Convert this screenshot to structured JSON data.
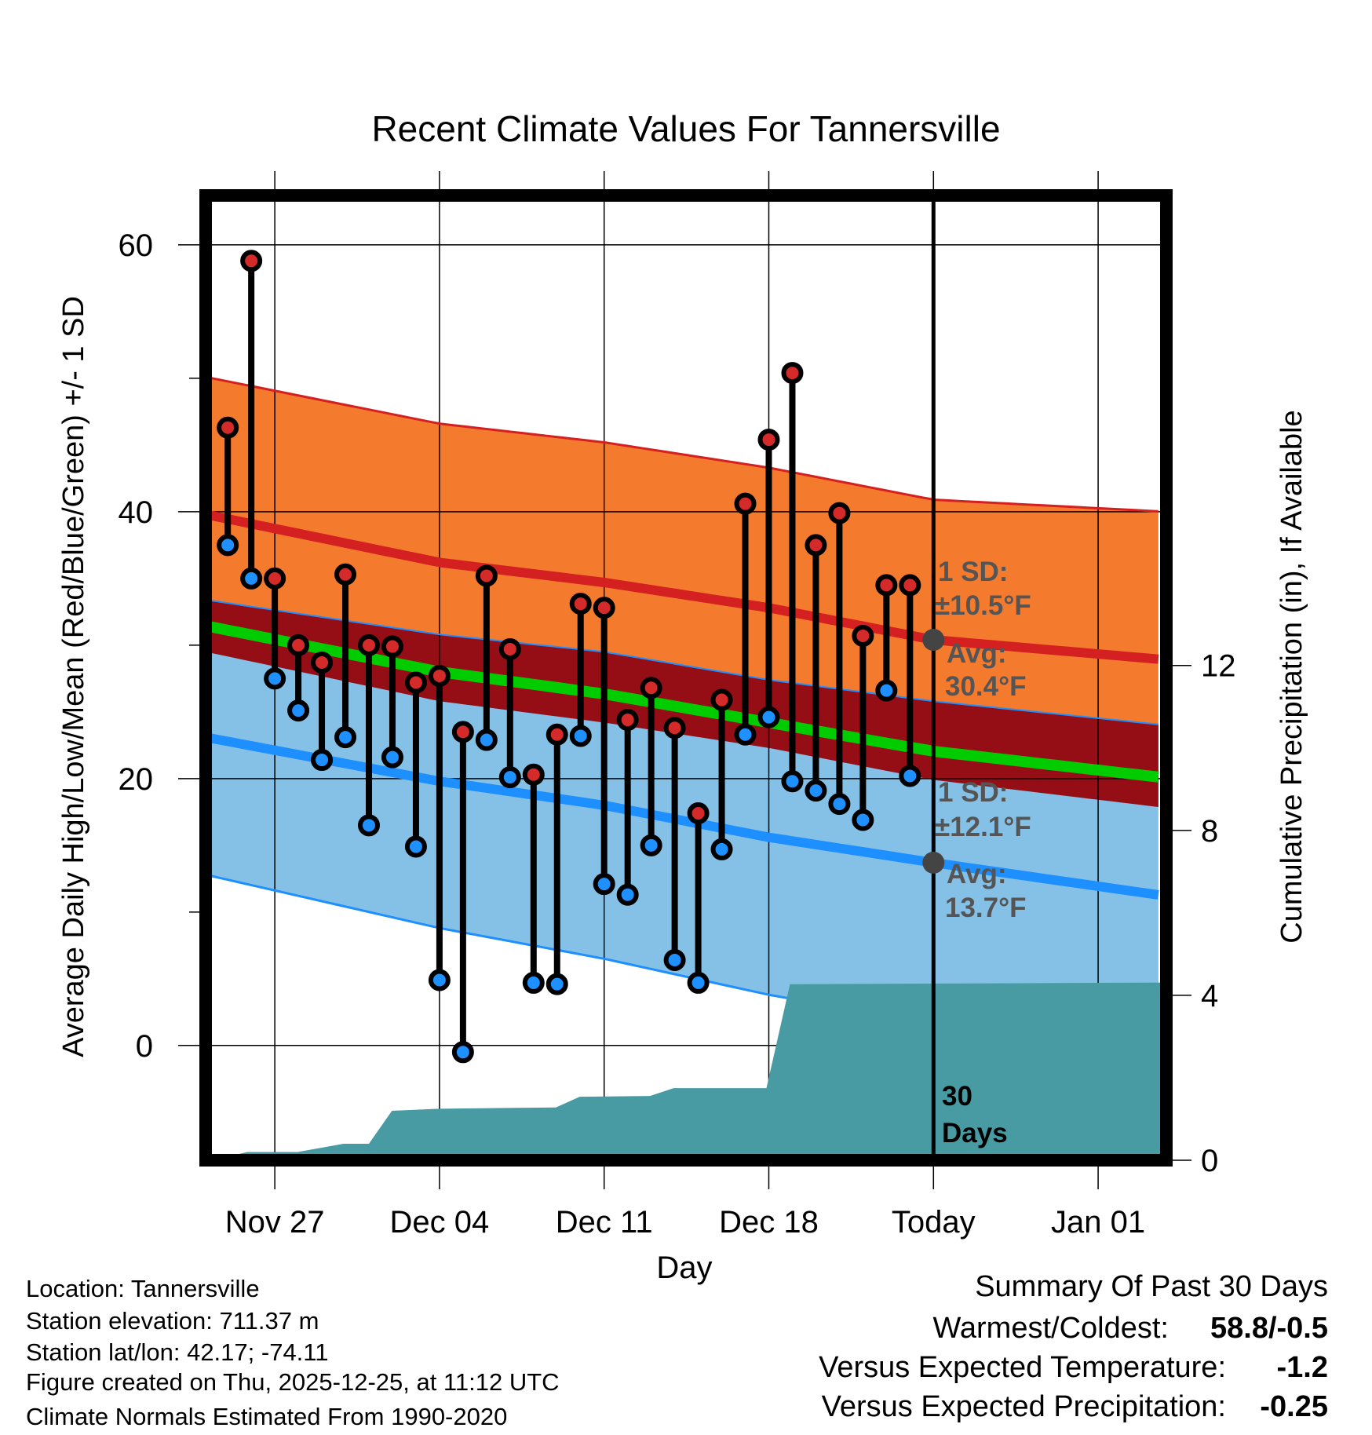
{
  "chart_data": {
    "type": "line",
    "title": "Recent Climate Values For Tannersville",
    "xlabel": "Day",
    "ylabel": "Average Daily High/Low/Mean (Red/Blue/Green) +/- 1 SD",
    "ylabel_right": "Cumulative Precipitation (in), If Available",
    "ylim": [
      -8.6,
      63.7
    ],
    "ylim_right": [
      0,
      23.4
    ],
    "x_reference": "Nov 27 = day 0",
    "xlim_days": [
      -2.94,
      37.9
    ],
    "x_ticks": [
      {
        "day": 0,
        "label": "Nov 27"
      },
      {
        "day": 7,
        "label": "Dec 04"
      },
      {
        "day": 14,
        "label": "Dec 11"
      },
      {
        "day": 21,
        "label": "Dec 18"
      },
      {
        "day": 28,
        "label": "Today"
      },
      {
        "day": 35,
        "label": "Jan 01"
      }
    ],
    "y_ticks": [
      0,
      20,
      40,
      60
    ],
    "y_ticks_right": [
      0,
      4,
      8,
      12
    ],
    "grid": true,
    "daily": {
      "days": [
        -2,
        -1,
        0,
        1,
        2,
        3,
        4,
        5,
        6,
        7,
        8,
        9,
        10,
        11,
        12,
        13,
        14,
        15,
        16,
        17,
        18,
        19,
        20,
        21,
        22,
        23,
        24,
        25,
        26,
        27
      ],
      "highs": [
        46.3,
        58.8,
        35.0,
        30.0,
        28.7,
        35.3,
        30.0,
        29.9,
        27.2,
        27.7,
        23.5,
        35.2,
        29.7,
        20.3,
        23.3,
        33.1,
        32.8,
        24.4,
        26.8,
        23.8,
        17.4,
        25.9,
        40.6,
        45.4,
        50.4,
        37.5,
        39.9,
        30.7,
        34.5,
        34.5
      ],
      "lows": [
        37.5,
        35.0,
        27.5,
        25.1,
        21.4,
        23.1,
        16.5,
        21.6,
        14.9,
        4.9,
        -0.5,
        22.9,
        20.1,
        4.7,
        4.6,
        23.2,
        12.1,
        11.3,
        15.0,
        6.4,
        4.7,
        14.7,
        23.3,
        24.6,
        19.8,
        19.1,
        18.1,
        16.9,
        26.6,
        20.2
      ]
    },
    "normals": {
      "days": [
        -2.94,
        7,
        14,
        21,
        28,
        37.9
      ],
      "high_avg": [
        39.8,
        36.2,
        34.7,
        32.8,
        30.4,
        28.9
      ],
      "high_sd": [
        10.3,
        10.4,
        10.5,
        10.5,
        10.5,
        11.1
      ],
      "low_avg": [
        23.1,
        19.8,
        18.0,
        15.6,
        13.7,
        11.2
      ],
      "low_sd": [
        10.3,
        11.0,
        11.5,
        11.8,
        12.1,
        12.8
      ]
    },
    "precip": {
      "days": [
        -2.94,
        -2.65,
        -1.17,
        0.97,
        1.95,
        2.92,
        4.0,
        4.98,
        7.0,
        11.95,
        12.96,
        15.95,
        16.96,
        20.9,
        21.9,
        37.9
      ],
      "inches": [
        0,
        0.0,
        0.2,
        0.2,
        0.3,
        0.4,
        0.4,
        1.2,
        1.25,
        1.28,
        1.54,
        1.56,
        1.75,
        1.75,
        4.27,
        4.31
      ]
    },
    "annotations": {
      "high_sd_label": "1 SD:",
      "high_sd_value": "±10.5°F",
      "high_avg_label": "Avg:",
      "high_avg_value": "30.4°F",
      "low_sd_label": "1 SD:",
      "low_sd_value": "±12.1°F",
      "low_avg_label": "Avg:",
      "low_avg_value": "13.7°F",
      "window_num": "30",
      "window_unit": "Days"
    },
    "colors": {
      "high_band": "#f47a2e",
      "overlap_band": "#950e16",
      "low_band": "#85c1e6",
      "high_line": "#d42020",
      "low_line": "#1e8fff",
      "mean_line": "#00cc00",
      "precip": "#489aa3",
      "high_dot": "#d42a2a",
      "low_dot": "#1e90ff"
    }
  },
  "footer": {
    "location": "Location: Tannersville",
    "elevation": "Station elevation: 711.37 m",
    "latlon": "Station lat/lon: 42.17; -74.11",
    "created": "Figure created on Thu, 2025-12-25, at 11:12 UTC",
    "normals": "Climate Normals Estimated From 1990-2020"
  },
  "summary": {
    "title": "Summary Of Past 30 Days",
    "warmest_label": "Warmest/Coldest:",
    "warmest_value": "58.8/-0.5",
    "temp_label": "Versus Expected Temperature:",
    "temp_value": "-1.2",
    "temp_color": "#1e8fff",
    "precip_label": "Versus Expected Precipitation:",
    "precip_value": "-0.25",
    "precip_color": "#a0522d"
  }
}
